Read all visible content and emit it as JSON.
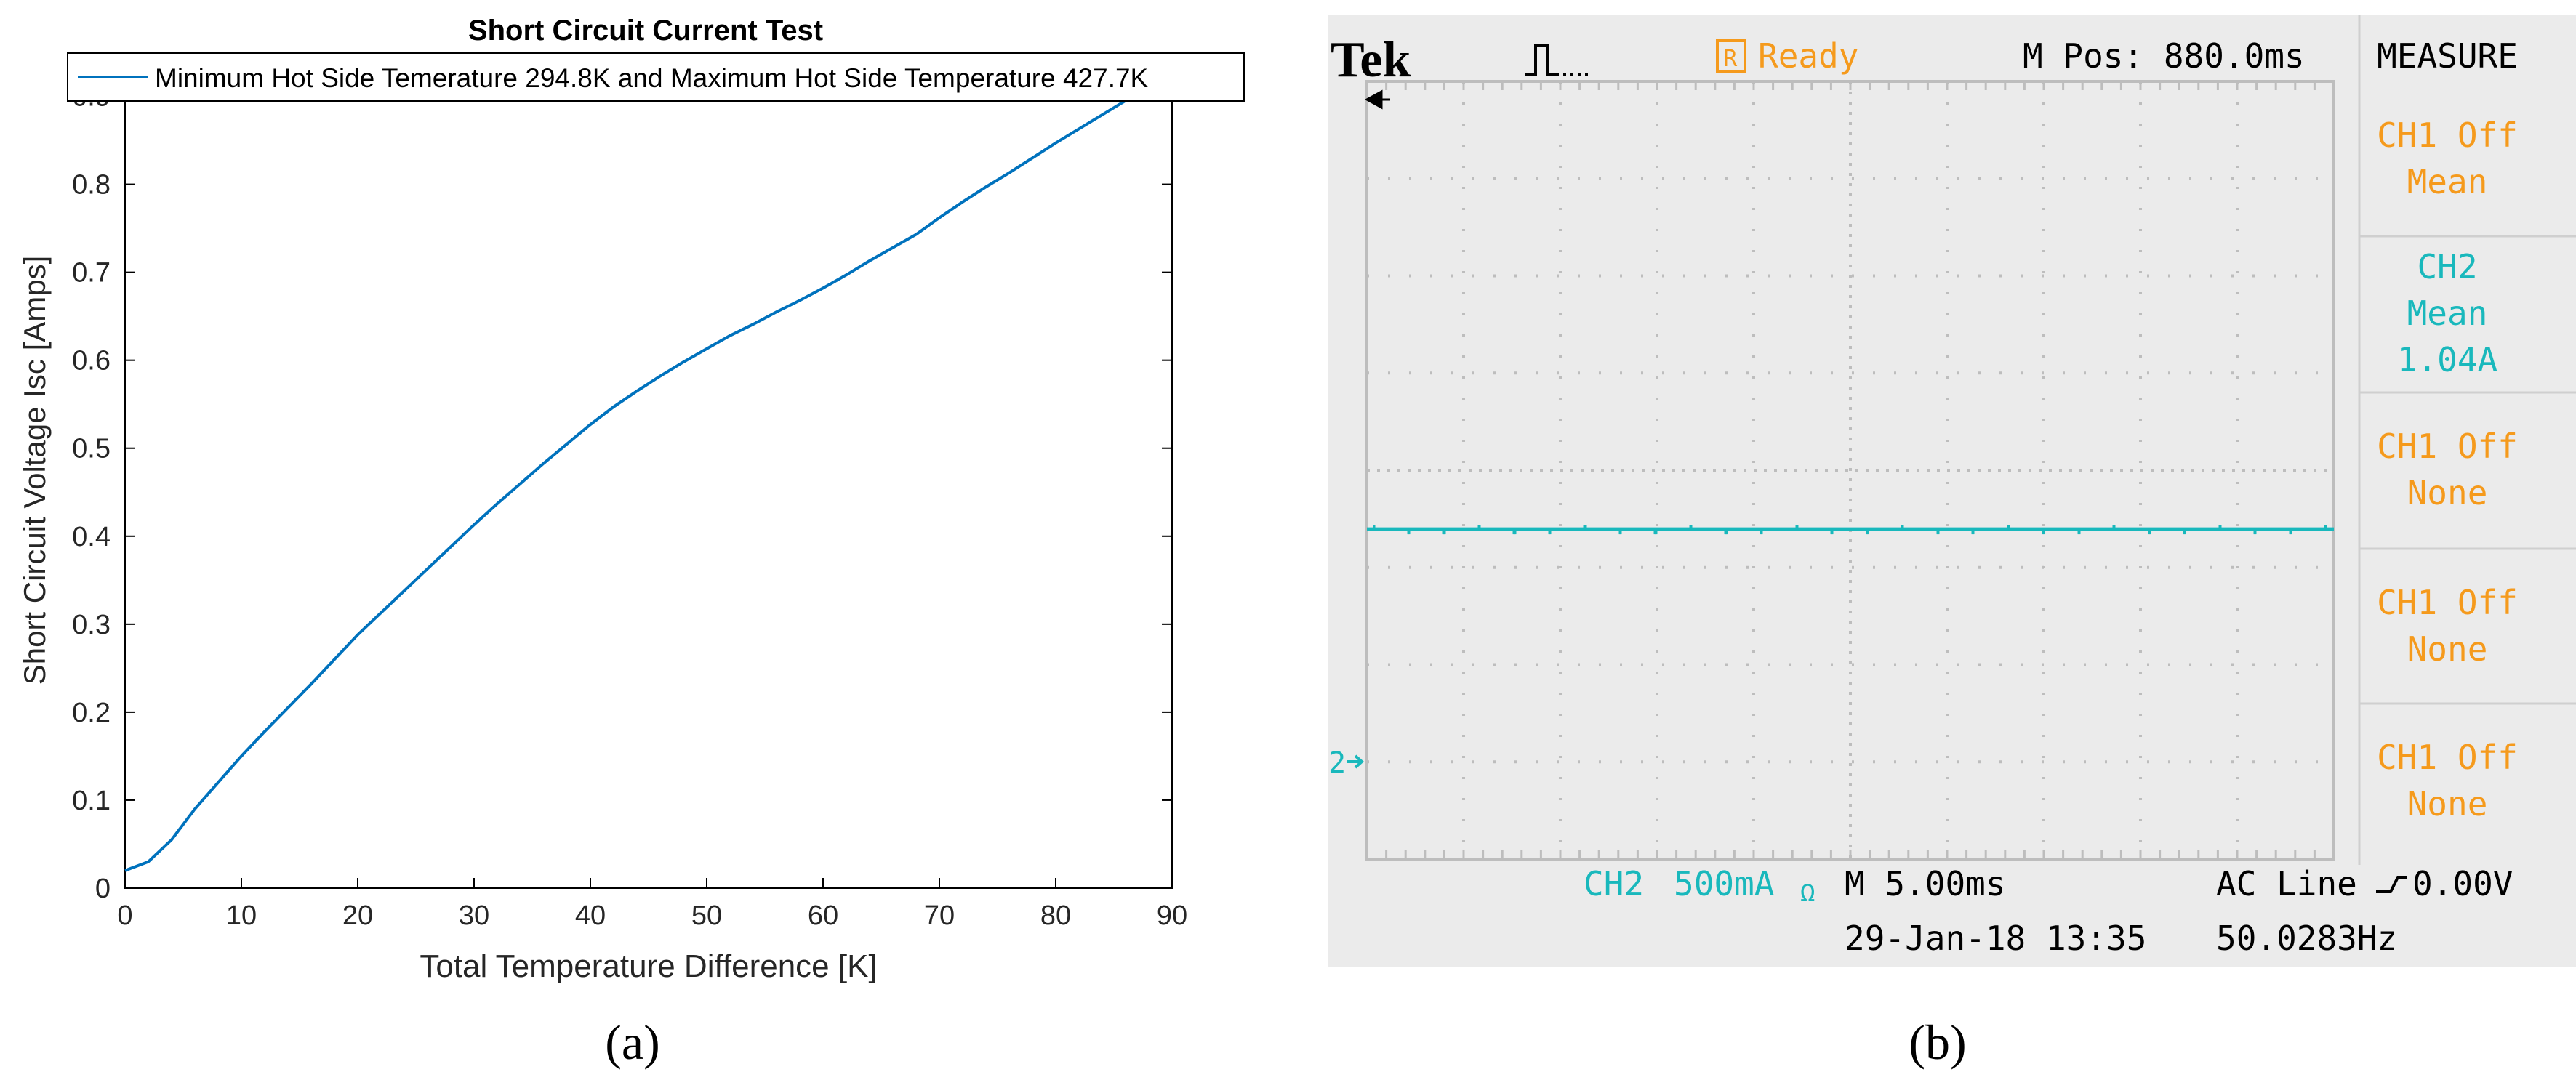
{
  "panel_a": {
    "caption": "(a)"
  },
  "panel_b": {
    "caption": "(b)",
    "scope": {
      "brand": "Tek",
      "status": "Ready",
      "m_pos": "M Pos: 880.0ms",
      "menu_title": "MEASURE",
      "measure_slots": [
        {
          "line1": "CH1 Off",
          "line2": "Mean",
          "line3": "",
          "color": "#f59a1c"
        },
        {
          "line1": "CH2",
          "line2": "Mean",
          "line3": "1.04A",
          "color": "#19b8bc"
        },
        {
          "line1": "CH1 Off",
          "line2": "None",
          "line3": "",
          "color": "#f59a1c"
        },
        {
          "line1": "CH1 Off",
          "line2": "None",
          "line3": "",
          "color": "#f59a1c"
        },
        {
          "line1": "CH1 Off",
          "line2": "None",
          "line3": "",
          "color": "#f59a1c"
        }
      ],
      "ch_marker": "2",
      "ch_label": "CH2",
      "ch_scale": "500mA",
      "ch_suffix": "Ω",
      "timebase": "M 5.00ms",
      "trigger_source": "AC Line",
      "trigger_level": "0.00V",
      "date_time": "29-Jan-18 13:35",
      "frequency": "50.0283Hz",
      "colors": {
        "orange": "#f59a1c",
        "cyan": "#19b8bc",
        "grid": "#bdbdbd",
        "bg": "#ebebeb"
      }
    }
  },
  "chart_data": [
    {
      "type": "line",
      "title": "Short Circuit Current Test",
      "xlabel": "Total Temperature Difference [K]",
      "ylabel": "Short Circuit Voltage Isc [Amps]",
      "xlim": [
        0,
        90
      ],
      "ylim": [
        0,
        0.95
      ],
      "xticks": [
        0,
        10,
        20,
        30,
        40,
        50,
        60,
        70,
        80,
        90
      ],
      "yticks": [
        0,
        0.1,
        0.2,
        0.3,
        0.4,
        0.5,
        0.6,
        0.7,
        0.8,
        0.9
      ],
      "legend_position": "top",
      "grid": false,
      "series": [
        {
          "name": "Minimum Hot Side Temerature 294.8K and Maximum Hot Side Temperature 427.7K",
          "color": "#0072bd",
          "x": [
            0,
            2,
            4,
            6,
            8,
            10,
            12,
            14,
            16,
            18,
            20,
            22,
            24,
            26,
            28,
            30,
            32,
            34,
            36,
            38,
            40,
            42,
            44,
            46,
            48,
            50,
            52,
            54,
            56,
            58,
            60,
            62,
            64,
            66,
            68,
            70,
            72,
            74,
            76,
            78,
            80,
            82,
            84,
            86,
            88,
            90
          ],
          "y": [
            0.02,
            0.03,
            0.055,
            0.09,
            0.12,
            0.15,
            0.178,
            0.205,
            0.232,
            0.26,
            0.288,
            0.313,
            0.338,
            0.363,
            0.388,
            0.413,
            0.437,
            0.46,
            0.483,
            0.505,
            0.527,
            0.547,
            0.565,
            0.582,
            0.598,
            0.613,
            0.628,
            0.641,
            0.655,
            0.668,
            0.682,
            0.697,
            0.713,
            0.728,
            0.743,
            0.762,
            0.78,
            0.797,
            0.813,
            0.83,
            0.847,
            0.863,
            0.879,
            0.895,
            0.912,
            0.93
          ]
        }
      ]
    },
    {
      "type": "line",
      "title": "",
      "xlabel": "",
      "ylabel": "",
      "grid": true,
      "series": [
        {
          "name": "CH2",
          "color": "#19b8bc",
          "x": [
            0,
            10
          ],
          "y": [
            1.04,
            1.04
          ]
        }
      ]
    }
  ]
}
